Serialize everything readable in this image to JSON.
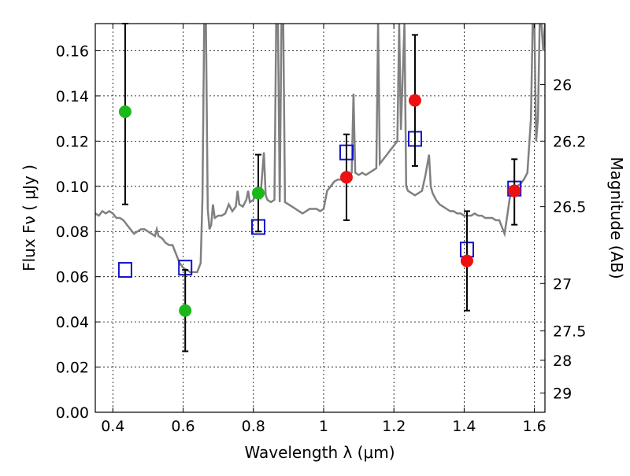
{
  "chart_data": {
    "type": "scatter",
    "title": "",
    "xlabel": "Wavelength  λ (μm)",
    "ylabel": "Flux  Fν  ( μJy )",
    "y2label": "Magnitude (AB)",
    "xlim": [
      0.35,
      1.63
    ],
    "ylim": [
      0.0,
      0.172
    ],
    "grid": true,
    "x_ticks": [
      0.4,
      0.6,
      0.8,
      1.0,
      1.2,
      1.4,
      1.6
    ],
    "x_tick_labels": [
      "0.4",
      "0.6",
      "0.8",
      "1",
      "1.2",
      "1.4",
      "1.6"
    ],
    "y_ticks": [
      0.0,
      0.02,
      0.04,
      0.06,
      0.08,
      0.1,
      0.12,
      0.14,
      0.16
    ],
    "y_tick_labels": [
      "0.00",
      "0.02",
      "0.04",
      "0.06",
      "0.08",
      "0.10",
      "0.12",
      "0.14",
      "0.16"
    ],
    "y2_ticks": [
      {
        "flux": 0.145,
        "label": "26"
      },
      {
        "flux": 0.12,
        "label": "26.2"
      },
      {
        "flux": 0.091,
        "label": "26.5"
      },
      {
        "flux": 0.057,
        "label": "27"
      },
      {
        "flux": 0.036,
        "label": "27.5"
      },
      {
        "flux": 0.023,
        "label": "28"
      },
      {
        "flux": 0.0085,
        "label": "29"
      }
    ],
    "series": [
      {
        "marker": "circle",
        "color": "#1bb81b",
        "points": [
          {
            "x": 0.435,
            "y": 0.133,
            "err_low": 0.092,
            "err_high": 0.172
          },
          {
            "x": 0.606,
            "y": 0.045,
            "err_low": 0.027,
            "err_high": 0.063
          },
          {
            "x": 0.814,
            "y": 0.097,
            "err_low": 0.08,
            "err_high": 0.114
          }
        ]
      },
      {
        "marker": "circle",
        "color": "#ee1111",
        "points": [
          {
            "x": 1.065,
            "y": 0.104,
            "err_low": 0.085,
            "err_high": 0.123
          },
          {
            "x": 1.26,
            "y": 0.138,
            "err_low": 0.109,
            "err_high": 0.167
          },
          {
            "x": 1.408,
            "y": 0.067,
            "err_low": 0.045,
            "err_high": 0.089
          },
          {
            "x": 1.543,
            "y": 0.098,
            "err_low": 0.083,
            "err_high": 0.112
          }
        ]
      },
      {
        "marker": "square-open",
        "color": "#1111cc",
        "points": [
          {
            "x": 0.435,
            "y": 0.063
          },
          {
            "x": 0.606,
            "y": 0.064
          },
          {
            "x": 0.814,
            "y": 0.082
          },
          {
            "x": 1.065,
            "y": 0.115
          },
          {
            "x": 1.26,
            "y": 0.121
          },
          {
            "x": 1.408,
            "y": 0.072
          },
          {
            "x": 1.543,
            "y": 0.099
          }
        ]
      }
    ],
    "model_spectrum": {
      "color": "#808080",
      "points": [
        [
          0.35,
          0.088
        ],
        [
          0.36,
          0.087
        ],
        [
          0.37,
          0.089
        ],
        [
          0.38,
          0.088
        ],
        [
          0.39,
          0.089
        ],
        [
          0.4,
          0.088
        ],
        [
          0.41,
          0.086
        ],
        [
          0.42,
          0.086
        ],
        [
          0.43,
          0.085
        ],
        [
          0.44,
          0.083
        ],
        [
          0.45,
          0.081
        ],
        [
          0.46,
          0.079
        ],
        [
          0.47,
          0.08
        ],
        [
          0.48,
          0.081
        ],
        [
          0.49,
          0.081
        ],
        [
          0.5,
          0.08
        ],
        [
          0.51,
          0.079
        ],
        [
          0.52,
          0.078
        ],
        [
          0.525,
          0.081
        ],
        [
          0.53,
          0.078
        ],
        [
          0.54,
          0.077
        ],
        [
          0.55,
          0.075
        ],
        [
          0.56,
          0.074
        ],
        [
          0.57,
          0.074
        ],
        [
          0.58,
          0.07
        ],
        [
          0.59,
          0.066
        ],
        [
          0.6,
          0.064
        ],
        [
          0.61,
          0.063
        ],
        [
          0.62,
          0.062
        ],
        [
          0.63,
          0.062
        ],
        [
          0.64,
          0.062
        ],
        [
          0.645,
          0.064
        ],
        [
          0.65,
          0.066
        ],
        [
          0.655,
          0.095
        ],
        [
          0.66,
          0.172
        ],
        [
          0.665,
          0.172
        ],
        [
          0.67,
          0.09
        ],
        [
          0.675,
          0.081
        ],
        [
          0.68,
          0.083
        ],
        [
          0.685,
          0.092
        ],
        [
          0.69,
          0.086
        ],
        [
          0.7,
          0.087
        ],
        [
          0.71,
          0.087
        ],
        [
          0.72,
          0.088
        ],
        [
          0.73,
          0.092
        ],
        [
          0.74,
          0.089
        ],
        [
          0.75,
          0.091
        ],
        [
          0.755,
          0.098
        ],
        [
          0.76,
          0.092
        ],
        [
          0.77,
          0.091
        ],
        [
          0.78,
          0.094
        ],
        [
          0.785,
          0.098
        ],
        [
          0.79,
          0.093
        ],
        [
          0.8,
          0.094
        ],
        [
          0.81,
          0.097
        ],
        [
          0.82,
          0.095
        ],
        [
          0.83,
          0.115
        ],
        [
          0.835,
          0.096
        ],
        [
          0.84,
          0.094
        ],
        [
          0.85,
          0.093
        ],
        [
          0.86,
          0.094
        ],
        [
          0.865,
          0.172
        ],
        [
          0.87,
          0.172
        ],
        [
          0.875,
          0.093
        ],
        [
          0.88,
          0.172
        ],
        [
          0.885,
          0.172
        ],
        [
          0.89,
          0.093
        ],
        [
          0.9,
          0.092
        ],
        [
          0.91,
          0.091
        ],
        [
          0.92,
          0.09
        ],
        [
          0.93,
          0.089
        ],
        [
          0.94,
          0.088
        ],
        [
          0.95,
          0.089
        ],
        [
          0.96,
          0.09
        ],
        [
          0.97,
          0.09
        ],
        [
          0.98,
          0.09
        ],
        [
          0.99,
          0.089
        ],
        [
          1.0,
          0.09
        ],
        [
          1.01,
          0.098
        ],
        [
          1.02,
          0.1
        ],
        [
          1.03,
          0.102
        ],
        [
          1.04,
          0.103
        ],
        [
          1.05,
          0.103
        ],
        [
          1.06,
          0.104
        ],
        [
          1.07,
          0.104
        ],
        [
          1.08,
          0.106
        ],
        [
          1.085,
          0.141
        ],
        [
          1.09,
          0.106
        ],
        [
          1.1,
          0.105
        ],
        [
          1.11,
          0.106
        ],
        [
          1.12,
          0.105
        ],
        [
          1.13,
          0.106
        ],
        [
          1.14,
          0.107
        ],
        [
          1.15,
          0.108
        ],
        [
          1.155,
          0.172
        ],
        [
          1.16,
          0.11
        ],
        [
          1.17,
          0.112
        ],
        [
          1.18,
          0.114
        ],
        [
          1.19,
          0.116
        ],
        [
          1.2,
          0.118
        ],
        [
          1.21,
          0.12
        ],
        [
          1.215,
          0.172
        ],
        [
          1.22,
          0.125
        ],
        [
          1.23,
          0.172
        ],
        [
          1.235,
          0.1
        ],
        [
          1.24,
          0.098
        ],
        [
          1.25,
          0.097
        ],
        [
          1.26,
          0.096
        ],
        [
          1.27,
          0.097
        ],
        [
          1.28,
          0.098
        ],
        [
          1.29,
          0.105
        ],
        [
          1.3,
          0.114
        ],
        [
          1.305,
          0.1
        ],
        [
          1.31,
          0.097
        ],
        [
          1.32,
          0.094
        ],
        [
          1.33,
          0.092
        ],
        [
          1.34,
          0.091
        ],
        [
          1.35,
          0.09
        ],
        [
          1.36,
          0.089
        ],
        [
          1.37,
          0.089
        ],
        [
          1.38,
          0.088
        ],
        [
          1.39,
          0.088
        ],
        [
          1.4,
          0.087
        ],
        [
          1.41,
          0.087
        ],
        [
          1.42,
          0.087
        ],
        [
          1.43,
          0.088
        ],
        [
          1.44,
          0.087
        ],
        [
          1.45,
          0.087
        ],
        [
          1.46,
          0.086
        ],
        [
          1.47,
          0.086
        ],
        [
          1.48,
          0.086
        ],
        [
          1.49,
          0.085
        ],
        [
          1.5,
          0.085
        ],
        [
          1.51,
          0.081
        ],
        [
          1.515,
          0.079
        ],
        [
          1.52,
          0.084
        ],
        [
          1.53,
          0.095
        ],
        [
          1.54,
          0.098
        ],
        [
          1.55,
          0.1
        ],
        [
          1.56,
          0.101
        ],
        [
          1.57,
          0.103
        ],
        [
          1.58,
          0.106
        ],
        [
          1.59,
          0.13
        ],
        [
          1.595,
          0.172
        ],
        [
          1.6,
          0.172
        ],
        [
          1.605,
          0.12
        ],
        [
          1.61,
          0.13
        ],
        [
          1.615,
          0.172
        ],
        [
          1.62,
          0.172
        ],
        [
          1.625,
          0.16
        ],
        [
          1.63,
          0.172
        ]
      ]
    }
  }
}
